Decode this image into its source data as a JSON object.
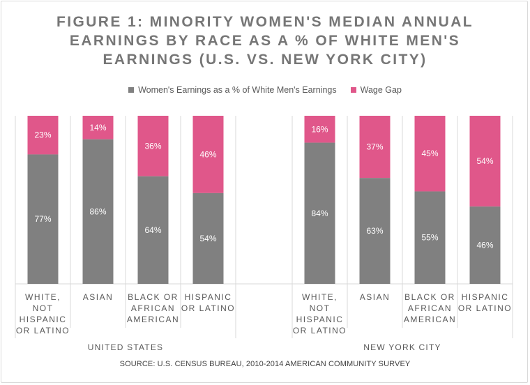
{
  "chart_data": {
    "type": "bar",
    "stacked": true,
    "percent_stacked": true,
    "title_lines": [
      "FIGURE 1: MINORITY WOMEN'S MEDIAN ANNUAL",
      "EARNINGS BY RACE AS A % OF WHITE MEN'S",
      "EARNINGS (U.S. VS. NEW YORK CITY)"
    ],
    "legend_position": "top",
    "grid": false,
    "ylim": [
      0,
      100
    ],
    "colors": {
      "earnings": "#808080",
      "gap": "#e0578a",
      "axis": "#d9d9d9",
      "label": "#595959"
    },
    "groups": [
      {
        "name": "UNITED STATES",
        "categories": [
          [
            "WHITE,",
            "NOT",
            "HISPANIC",
            "OR LATINO"
          ],
          [
            "ASIAN"
          ],
          [
            "BLACK OR",
            "AFRICAN",
            "AMERICAN"
          ],
          [
            "HISPANIC",
            "OR LATINO"
          ]
        ],
        "earnings": [
          77,
          86,
          64,
          54
        ],
        "gap": [
          23,
          14,
          36,
          46
        ]
      },
      {
        "name": "NEW YORK CITY",
        "categories": [
          [
            "WHITE,",
            "NOT",
            "HISPANIC",
            "OR LATINO"
          ],
          [
            "ASIAN"
          ],
          [
            "BLACK OR",
            "AFRICAN",
            "AMERICAN"
          ],
          [
            "HISPANIC",
            "OR LATINO"
          ]
        ],
        "earnings": [
          84,
          63,
          55,
          46
        ],
        "gap": [
          16,
          37,
          45,
          54
        ]
      }
    ],
    "series": [
      {
        "key": "earnings",
        "name": "Women's Earnings as a % of White Men's Earnings"
      },
      {
        "key": "gap",
        "name": "Wage Gap"
      }
    ],
    "value_suffix": "%",
    "source": "SOURCE: U.S. CENSUS BUREAU, 2010-2014 AMERICAN COMMUNITY SURVEY"
  }
}
